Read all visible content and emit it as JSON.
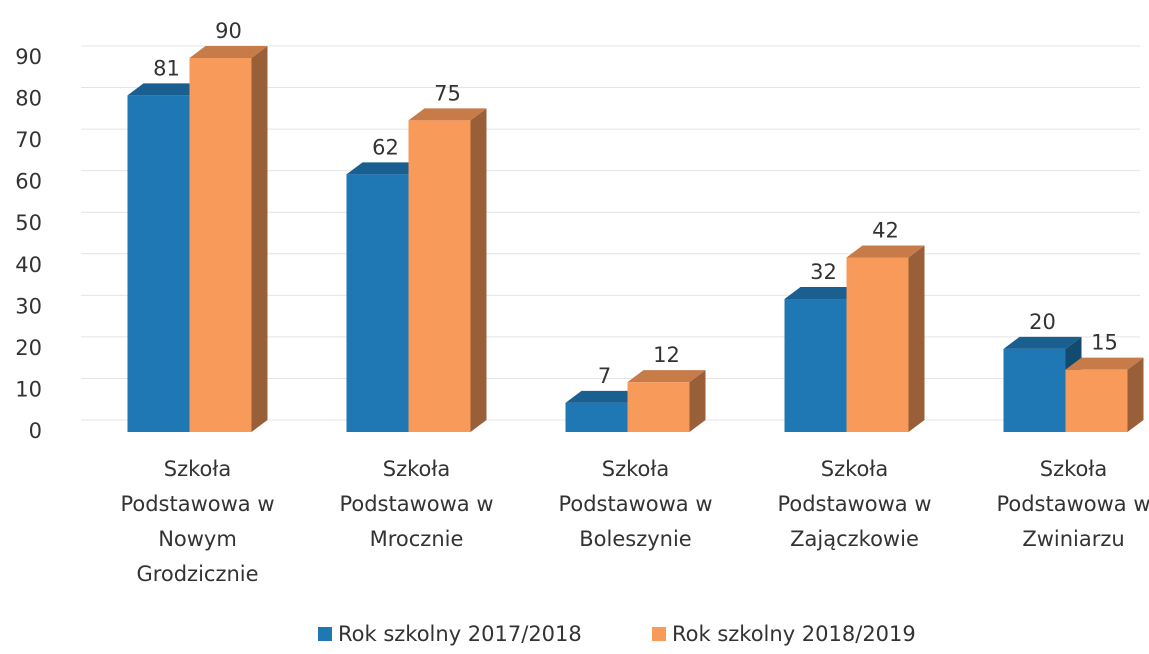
{
  "chart_data": {
    "type": "bar3d",
    "categories": [
      "Szkoła Podstawowa w Nowym Grodzicznie",
      "Szkoła Podstawowa w Mrocznie",
      "Szkoła Podstawowa w Boleszynie",
      "Szkoła Podstawowa w Zajączkowie",
      "Szkoła Podstawowa w Zwiniarzu"
    ],
    "series": [
      {
        "name": "Rok szkolny 2017/2018",
        "color": "#1f77b4",
        "values": [
          81,
          62,
          7,
          32,
          20
        ]
      },
      {
        "name": "Rok szkolny 2018/2019",
        "color": "#f79a5a",
        "values": [
          90,
          75,
          12,
          42,
          15
        ]
      }
    ],
    "ylim": [
      0,
      90
    ],
    "yticks": [
      0,
      10,
      20,
      30,
      40,
      50,
      60,
      70,
      80,
      90
    ],
    "grid": true,
    "legend": "bottom"
  }
}
